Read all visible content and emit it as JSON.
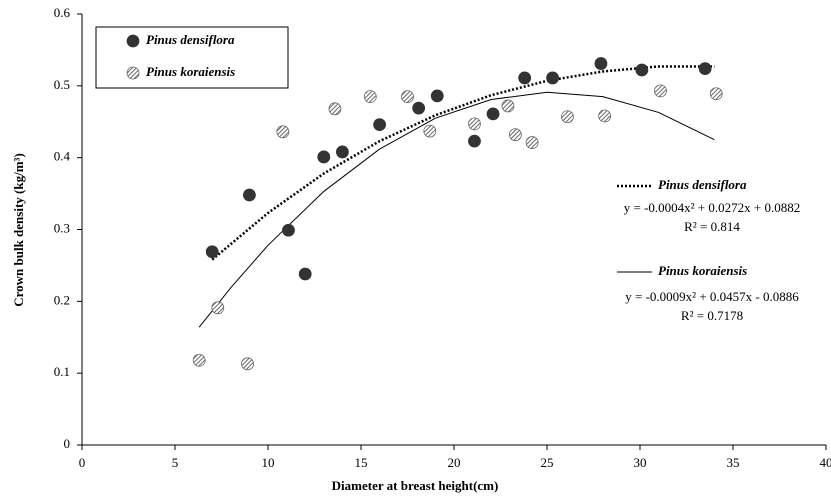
{
  "chart_data": {
    "type": "scatter",
    "x_label": "Diameter at breast height(cm)",
    "y_label": "Crown bulk density (kg/m³)",
    "xlim": [
      0,
      40
    ],
    "xticks": [
      0,
      5,
      10,
      15,
      20,
      25,
      30,
      35,
      40
    ],
    "ylim": [
      0,
      0.6
    ],
    "yticks": [
      0,
      0.1,
      0.2,
      0.3,
      0.4,
      0.5,
      0.6
    ],
    "series": [
      {
        "name": "Pinus densiflora",
        "marker": "filled",
        "color": "#333333",
        "x": [
          7.0,
          9.0,
          11.1,
          12.0,
          13.0,
          14.0,
          16.0,
          18.1,
          19.1,
          21.1,
          22.1,
          23.8,
          25.3,
          27.9,
          30.1,
          33.5
        ],
        "values": [
          0.269,
          0.348,
          0.299,
          0.238,
          0.401,
          0.408,
          0.446,
          0.469,
          0.486,
          0.423,
          0.461,
          0.511,
          0.511,
          0.531,
          0.522,
          0.524
        ]
      },
      {
        "name": "Pinus koraiensis",
        "marker": "hatched",
        "color": "#555555",
        "x": [
          6.3,
          7.3,
          8.9,
          10.8,
          13.6,
          15.5,
          17.5,
          18.7,
          21.1,
          22.9,
          23.3,
          24.2,
          26.1,
          28.1,
          31.1,
          34.1
        ],
        "values": [
          0.118,
          0.191,
          0.113,
          0.436,
          0.468,
          0.485,
          0.485,
          0.437,
          0.447,
          0.472,
          0.432,
          0.421,
          0.457,
          0.458,
          0.493,
          0.489
        ]
      }
    ],
    "fits": [
      {
        "name": "Pinus densiflora",
        "style": "dotted",
        "equation": "y = -0.0004x² + 0.0272x + 0.0882",
        "r2": "R² = 0.814",
        "x": [
          7,
          10,
          13,
          16,
          19,
          22,
          25,
          28,
          31,
          34
        ],
        "values": [
          0.258,
          0.323,
          0.378,
          0.423,
          0.459,
          0.487,
          0.507,
          0.52,
          0.527,
          0.527
        ]
      },
      {
        "name": "Pinus koraiensis",
        "style": "solid",
        "equation": "y = -0.0009x² + 0.0457x - 0.0886",
        "r2": "R² = 0.7178",
        "x": [
          6.3,
          8,
          10,
          13,
          16,
          19,
          22,
          25,
          28,
          31,
          34
        ],
        "values": [
          0.164,
          0.219,
          0.278,
          0.353,
          0.412,
          0.455,
          0.481,
          0.491,
          0.485,
          0.463,
          0.425
        ]
      }
    ]
  }
}
